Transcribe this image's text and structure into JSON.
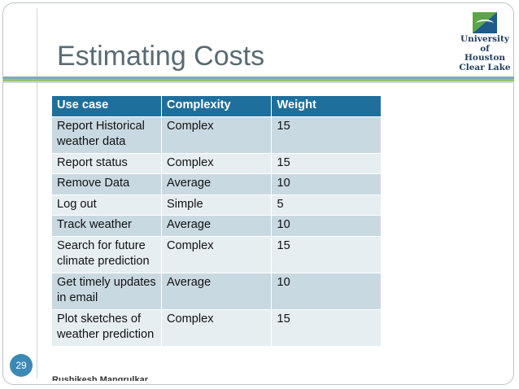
{
  "slide": {
    "title": "Estimating Costs",
    "page_number": "29",
    "author": "Rushikesh Mangrulkar"
  },
  "logo": {
    "line1": "University",
    "line2": "of Houston",
    "line3": "Clear Lake"
  },
  "table": {
    "headers": [
      "Use case",
      "Complexity",
      "Weight"
    ],
    "rows": [
      {
        "use_case": "Report Historical weather data",
        "complexity": "Complex",
        "weight": "15"
      },
      {
        "use_case": "Report status",
        "complexity": "Complex",
        "weight": "15"
      },
      {
        "use_case": "Remove Data",
        "complexity": "Average",
        "weight": "10"
      },
      {
        "use_case": "Log out",
        "complexity": "Simple",
        "weight": "5"
      },
      {
        "use_case": "Track weather",
        "complexity": "Average",
        "weight": "10"
      },
      {
        "use_case": "Search for future climate prediction",
        "complexity": "Complex",
        "weight": "15"
      },
      {
        "use_case": "Get timely updates in email",
        "complexity": "Average",
        "weight": "10"
      },
      {
        "use_case": "Plot sketches of weather prediction",
        "complexity": "Complex",
        "weight": "15"
      }
    ]
  },
  "colors": {
    "header_bg": "#1f6f9c",
    "row_odd": "#c9d9e2",
    "row_even": "#e6eef2",
    "title_text": "#5a6b73",
    "page_badge": "#3c89b5"
  }
}
